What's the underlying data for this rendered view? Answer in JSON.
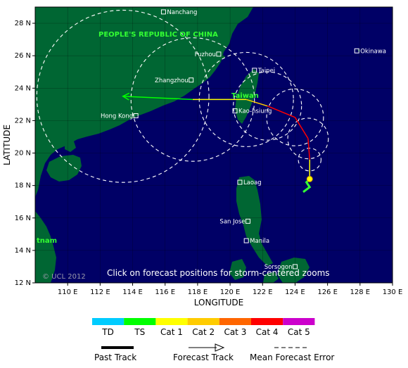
{
  "axes": {
    "x_title": "LONGITUDE",
    "y_title": "LATITUDE",
    "x_ticks": [
      "110 E",
      "112 E",
      "114 E",
      "116 E",
      "118 E",
      "120 E",
      "122 E",
      "124 E",
      "126 E",
      "128 E",
      "130 E"
    ],
    "y_ticks": [
      "12 N",
      "14 N",
      "16 N",
      "18 N",
      "20 N",
      "22 N",
      "24 N",
      "26 N",
      "28 N"
    ]
  },
  "map_labels": {
    "country_china": "PEOPLE'S REPUBLIC OF CHINA",
    "country_taiwan": "Taiwan",
    "country_vietnam": "tnam",
    "copyright": "© UCL 2012",
    "click_note": "Click on forecast positions for storm-centered zooms"
  },
  "cities": [
    {
      "name": "Nanchang",
      "lon": 115.9,
      "lat": 28.7
    },
    {
      "name": "Fuzhou",
      "lon": 119.3,
      "lat": 26.1
    },
    {
      "name": "Okinawa",
      "lon": 127.8,
      "lat": 26.3
    },
    {
      "name": "Taipei",
      "lon": 121.5,
      "lat": 25.1
    },
    {
      "name": "Zhangzhou",
      "lon": 117.6,
      "lat": 24.5
    },
    {
      "name": "Hong Kong",
      "lon": 114.2,
      "lat": 22.3
    },
    {
      "name": "Kao-hsiung",
      "lon": 120.3,
      "lat": 22.6
    },
    {
      "name": "Laoag",
      "lon": 120.6,
      "lat": 18.2
    },
    {
      "name": "San Jose",
      "lon": 121.1,
      "lat": 15.8
    },
    {
      "name": "Manila",
      "lon": 121.0,
      "lat": 14.6
    },
    {
      "name": "Sorsogon",
      "lon": 124.0,
      "lat": 13.0
    }
  ],
  "past_track": [
    {
      "lon": 124.5,
      "lat": 17.6
    },
    {
      "lon": 124.9,
      "lat": 17.9
    },
    {
      "lon": 124.7,
      "lat": 18.2
    },
    {
      "lon": 124.9,
      "lat": 18.4
    }
  ],
  "forecast_track": [
    {
      "lon": 124.9,
      "lat": 18.4,
      "cat": "Cat 1"
    },
    {
      "lon": 124.9,
      "lat": 19.6,
      "cat": "Cat 1"
    },
    {
      "lon": 124.8,
      "lat": 20.9,
      "cat": "Cat 4"
    },
    {
      "lon": 124.0,
      "lat": 22.2,
      "cat": "Cat 4"
    },
    {
      "lon": 122.3,
      "lat": 22.9,
      "cat": "Cat 4"
    },
    {
      "lon": 121.0,
      "lat": 23.3,
      "cat": "Cat 2"
    },
    {
      "lon": 117.7,
      "lat": 23.3,
      "cat": "Cat 1"
    },
    {
      "lon": 113.4,
      "lat": 23.5,
      "cat": "TS"
    }
  ],
  "error_circles": [
    {
      "lon": 124.9,
      "lat": 19.6,
      "radius_deg": 0.7
    },
    {
      "lon": 124.8,
      "lat": 20.9,
      "radius_deg": 1.25
    },
    {
      "lon": 124.0,
      "lat": 22.2,
      "radius_deg": 1.75
    },
    {
      "lon": 122.3,
      "lat": 22.9,
      "radius_deg": 2.1
    },
    {
      "lon": 121.0,
      "lat": 23.3,
      "radius_deg": 2.9
    },
    {
      "lon": 117.7,
      "lat": 23.3,
      "radius_deg": 3.8
    },
    {
      "lon": 113.4,
      "lat": 23.5,
      "radius_deg": 5.3
    }
  ],
  "scale": {
    "items": [
      {
        "label": "TD",
        "color": "#00ccff"
      },
      {
        "label": "TS",
        "color": "#00ff00"
      },
      {
        "label": "Cat 1",
        "color": "#ffff00"
      },
      {
        "label": "Cat 2",
        "color": "#ffcc00"
      },
      {
        "label": "Cat 3",
        "color": "#ff6600"
      },
      {
        "label": "Cat 4",
        "color": "#ff0000"
      },
      {
        "label": "Cat 5",
        "color": "#cc00cc"
      }
    ]
  },
  "legend": {
    "past_track": "Past Track",
    "forecast_track": "Forecast Track",
    "mean_error": "Mean Forecast Error"
  },
  "colors": {
    "ocean": "#000066",
    "land": "#006633",
    "track_past": "#33ff33"
  }
}
